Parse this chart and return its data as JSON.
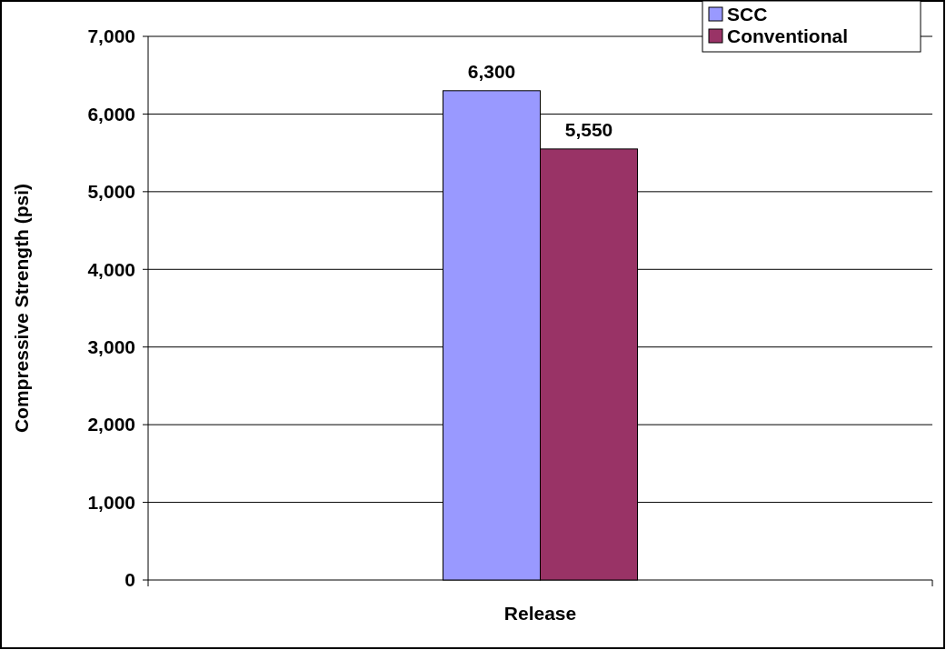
{
  "chart_data": {
    "type": "bar",
    "ylabel": "Compressive Strength (psi)",
    "categories": [
      "Release"
    ],
    "series": [
      {
        "name": "SCC",
        "color": "#9999ff",
        "values": [
          6300
        ],
        "value_labels": [
          "6,300"
        ]
      },
      {
        "name": "Conventional",
        "color": "#993366",
        "values": [
          5550
        ],
        "value_labels": [
          "5,550"
        ]
      }
    ],
    "ylim": [
      0,
      7000
    ],
    "yticks": [
      {
        "value": 0,
        "label": "0"
      },
      {
        "value": 1000,
        "label": "1,000"
      },
      {
        "value": 2000,
        "label": "2,000"
      },
      {
        "value": 3000,
        "label": "3,000"
      },
      {
        "value": 4000,
        "label": "4,000"
      },
      {
        "value": 5000,
        "label": "5,000"
      },
      {
        "value": 6000,
        "label": "6,000"
      },
      {
        "value": 7000,
        "label": "7,000"
      }
    ],
    "grid": "y",
    "legend": "top right"
  }
}
